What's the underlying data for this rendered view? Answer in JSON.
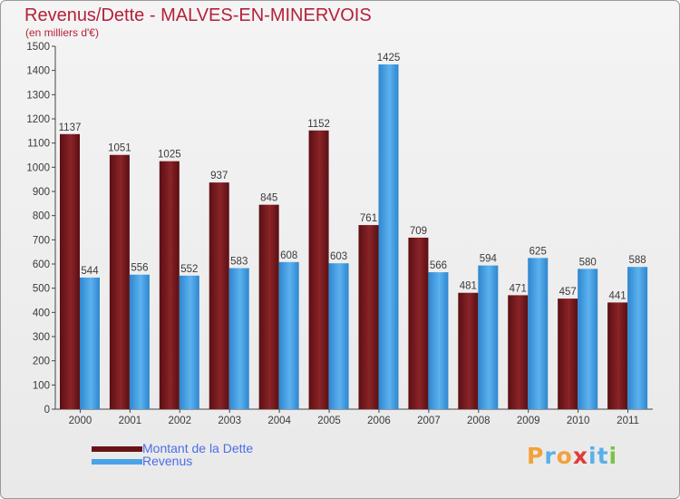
{
  "chart_data": {
    "type": "bar",
    "title": "Revenus/Dette - MALVES-EN-MINERVOIS",
    "subtitle": "(en milliers d'€)",
    "categories": [
      "2000",
      "2001",
      "2002",
      "2003",
      "2004",
      "2005",
      "2006",
      "2007",
      "2008",
      "2009",
      "2010",
      "2011"
    ],
    "series": [
      {
        "name": "Montant de la Dette",
        "color": "#7a1a1f",
        "values": [
          1137,
          1051,
          1025,
          937,
          845,
          1152,
          761,
          709,
          481,
          471,
          457,
          441
        ]
      },
      {
        "name": "Revenus",
        "color": "#4aa3e6",
        "values": [
          544,
          556,
          552,
          583,
          608,
          603,
          1425,
          566,
          594,
          625,
          580,
          588
        ]
      }
    ],
    "ylim": [
      0,
      1500
    ],
    "yticks": [
      0,
      100,
      200,
      300,
      400,
      500,
      600,
      700,
      800,
      900,
      1000,
      1100,
      1200,
      1300,
      1400,
      1500
    ],
    "xlabel": "",
    "ylabel": "",
    "grid": false,
    "legend_position": "bottom-left"
  },
  "legend": {
    "debt_label": "Montant de la Dette",
    "revenue_label": "Revenus"
  },
  "logo": {
    "text": "Proxiti",
    "letters": [
      {
        "ch": "P",
        "color": "#f2a23a"
      },
      {
        "ch": "r",
        "color": "#5ab0e8"
      },
      {
        "ch": "o",
        "color": "#f2a23a"
      },
      {
        "ch": "x",
        "color": "#e23a3a"
      },
      {
        "ch": "i",
        "color": "#5ab0e8"
      },
      {
        "ch": "t",
        "color": "#5ab0e8"
      },
      {
        "ch": "i",
        "color": "#7cc245"
      }
    ]
  }
}
